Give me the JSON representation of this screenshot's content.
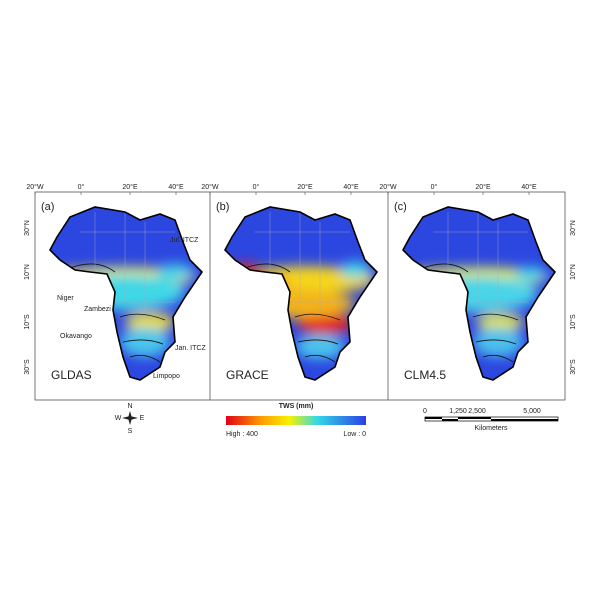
{
  "panels": [
    {
      "label": "(a)",
      "name": "GLDAS",
      "lon_labels": [
        "20°W",
        "0°",
        "20°E",
        "40°E"
      ]
    },
    {
      "label": "(b)",
      "name": "GRACE",
      "lon_labels": [
        "20°W",
        "0°",
        "20°E",
        "40°E"
      ]
    },
    {
      "label": "(c)",
      "name": "CLM4.5",
      "lon_labels": [
        "20°W",
        "0°",
        "20°E",
        "40°E"
      ]
    }
  ],
  "lat_labels": [
    "30°N",
    "10°N",
    "10°S",
    "30°S"
  ],
  "annotations": [
    "Jul. ITCZ",
    "Niger",
    "Zambezi",
    "Okavango",
    "Jan. ITCZ",
    "Limpopo"
  ],
  "legend": {
    "title": "TWS (mm)",
    "high": "High : 400",
    "low": "Low : 0"
  },
  "scale_bar": {
    "ticks": [
      "0",
      "1,250",
      "2,500",
      "5,000"
    ],
    "unit": "Kilometers"
  },
  "compass": {
    "n": "N",
    "e": "E",
    "s": "S",
    "w": "W"
  }
}
